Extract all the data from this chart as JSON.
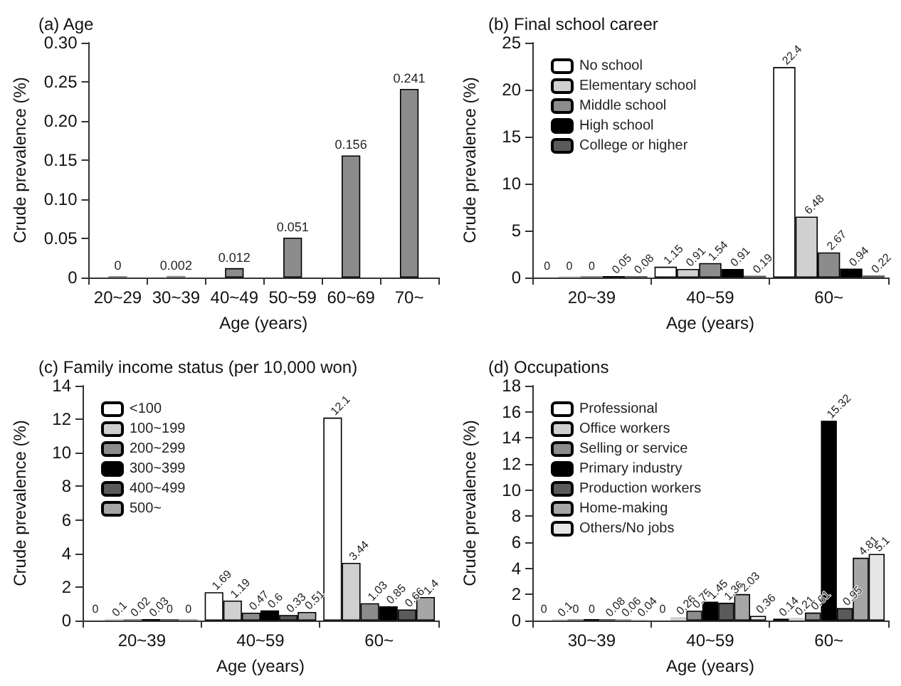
{
  "chart_data": [
    {
      "type": "bar",
      "title": "(a) Age",
      "xlabel": "Age (years)",
      "ylabel": "Crude prevalence (%)",
      "categories": [
        "20~29",
        "30~39",
        "40~49",
        "50~59",
        "60~69",
        "70~"
      ],
      "values": [
        0,
        0.002,
        0.012,
        0.051,
        0.156,
        0.241
      ],
      "color": "#8c8c8c",
      "data_labels": true,
      "ylim": [
        0,
        0.3
      ],
      "yticks": [
        0,
        0.05,
        {
          "value": 0.1,
          "label": "0.10"
        },
        {
          "value": 0.15,
          "label": "0.15"
        },
        {
          "value": 0.2,
          "label": "0.20"
        },
        {
          "value": 0.25,
          "label": "0.25"
        },
        {
          "value": 0.3,
          "label": "0.30"
        }
      ],
      "grid": false,
      "legend": false
    },
    {
      "type": "bar",
      "title": "(b) Final school career",
      "xlabel": "Age (years)",
      "ylabel": "Crude prevalence (%)",
      "categories": [
        "20~39",
        "40~59",
        "60~"
      ],
      "series": [
        {
          "name": "No school",
          "color": "#ffffff",
          "values": [
            0,
            1.15,
            22.4
          ]
        },
        {
          "name": "Elementary school",
          "color": "#d0d0d0",
          "values": [
            0,
            0.91,
            6.48
          ]
        },
        {
          "name": "Middle school",
          "color": "#8c8c8c",
          "values": [
            0,
            1.54,
            2.67
          ]
        },
        {
          "name": "High school",
          "color": "#000000",
          "values": [
            0.05,
            0.91,
            0.94
          ]
        },
        {
          "name": "College or higher",
          "color": "#5a5a5a",
          "values": [
            0.08,
            0.19,
            0.22
          ]
        }
      ],
      "data_labels": true,
      "ylim": [
        0,
        25
      ],
      "yticks": [
        0,
        5,
        10,
        15,
        20,
        25
      ],
      "grid": false,
      "legend": "top left"
    },
    {
      "type": "bar",
      "title": "(c) Family income status (per 10,000 won)",
      "xlabel": "Age (years)",
      "ylabel": "Crude prevalence (%)",
      "categories": [
        "20~39",
        "40~59",
        "60~"
      ],
      "series": [
        {
          "name": "<100",
          "color": "#ffffff",
          "values": [
            0,
            1.69,
            12.1
          ]
        },
        {
          "name": "100~199",
          "color": "#d0d0d0",
          "values": [
            0.1,
            1.19,
            3.44
          ]
        },
        {
          "name": "200~299",
          "color": "#8c8c8c",
          "values": [
            0.02,
            0.47,
            1.03
          ]
        },
        {
          "name": "300~399",
          "color": "#000000",
          "values": [
            0.03,
            0.6,
            0.85
          ]
        },
        {
          "name": "400~499",
          "color": "#5a5a5a",
          "values": [
            0,
            0.33,
            0.66
          ]
        },
        {
          "name": "500~",
          "color": "#a6a6a6",
          "values": [
            0,
            0.51,
            1.4
          ]
        }
      ],
      "data_labels": true,
      "ylim": [
        0,
        14
      ],
      "yticks": [
        0,
        2,
        4,
        6,
        8,
        10,
        12,
        14
      ],
      "grid": false,
      "legend": "top left"
    },
    {
      "type": "bar",
      "title": "(d) Occupations",
      "xlabel": "Age (years)",
      "ylabel": "Crude prevalence (%)",
      "categories": [
        "30~39",
        "40~59",
        "60~"
      ],
      "series": [
        {
          "name": "Professional",
          "color": "#ffffff",
          "values": [
            0,
            0,
            0.14
          ]
        },
        {
          "name": "Office workers",
          "color": "#d0d0d0",
          "values": [
            0.1,
            0.26,
            0.21
          ]
        },
        {
          "name": "Selling or service",
          "color": "#8c8c8c",
          "values": [
            0,
            0.75,
            0.61
          ]
        },
        {
          "name": "Primary industry",
          "color": "#000000",
          "values": [
            0,
            1.45,
            15.32
          ]
        },
        {
          "name": "Production workers",
          "color": "#5a5a5a",
          "values": [
            0.08,
            1.36,
            0.95
          ]
        },
        {
          "name": "Home-making",
          "color": "#a6a6a6",
          "values": [
            0.06,
            2.03,
            4.81
          ]
        },
        {
          "name": "Others/No jobs",
          "color": "#e6e6e6",
          "values": [
            0.04,
            0.36,
            5.1
          ]
        }
      ],
      "data_labels": true,
      "ylim": [
        0,
        18
      ],
      "yticks": [
        0,
        2,
        4,
        6,
        8,
        10,
        12,
        14,
        16,
        18
      ],
      "grid": false,
      "legend": "top left"
    }
  ]
}
